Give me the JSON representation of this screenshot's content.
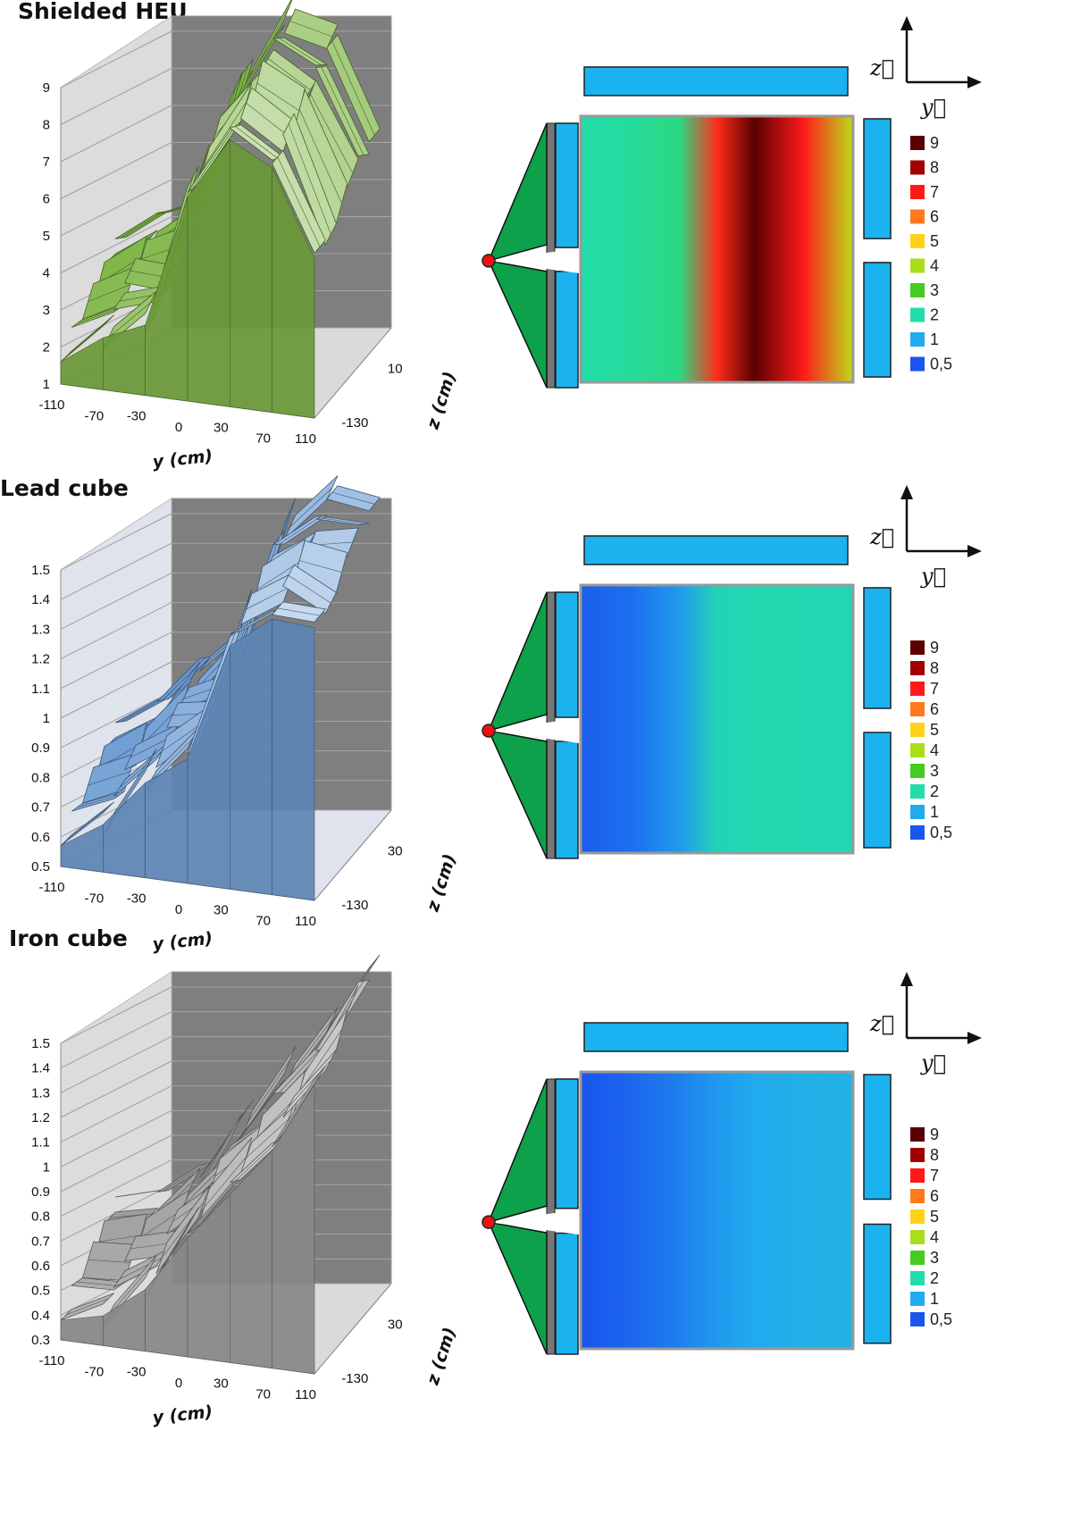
{
  "chart_data": [
    {
      "type": "surface",
      "title": "Shielded HEU",
      "xlabel": "y (cm)",
      "zlabel": "z (cm)",
      "x_ticks": [
        "-110",
        "-70",
        "-30",
        "0",
        "30",
        "70",
        "110"
      ],
      "z_ticks": [
        "10",
        "-130"
      ],
      "y_ticks": [
        "1",
        "2",
        "3",
        "4",
        "5",
        "6",
        "7",
        "8",
        "9"
      ],
      "ylim": [
        1,
        9
      ],
      "x": [
        -110,
        -70,
        -30,
        0,
        30,
        70,
        110
      ],
      "values": [
        1.6,
        2.4,
        2.9,
        6.5,
        8.2,
        7.6,
        5.3
      ],
      "surface_color": "#7cb342",
      "heatmap": {
        "y": [
          -110,
          -70,
          -30,
          0,
          30,
          70,
          110
        ],
        "values": [
          2.0,
          2.1,
          2.3,
          6.8,
          9.0,
          7.0,
          4.2
        ]
      },
      "colorbar": [
        "9",
        "8",
        "7",
        "6",
        "5",
        "4",
        "3",
        "2",
        "1",
        "0,5"
      ],
      "axis_vectors": [
        "z⃗",
        "y⃗"
      ]
    },
    {
      "type": "surface",
      "title": "Lead cube",
      "xlabel": "y (cm)",
      "zlabel": "z (cm)",
      "x_ticks": [
        "-110",
        "-70",
        "-30",
        "0",
        "30",
        "70",
        "110"
      ],
      "z_ticks": [
        "30",
        "-130"
      ],
      "y_ticks": [
        "0.5",
        "0.6",
        "0.7",
        "0.8",
        "0.9",
        "1",
        "1.1",
        "1.2",
        "1.3",
        "1.4",
        "1.5"
      ],
      "ylim": [
        0.5,
        1.5
      ],
      "x": [
        -110,
        -70,
        -30,
        0,
        30,
        70,
        110
      ],
      "values": [
        0.57,
        0.66,
        0.82,
        0.92,
        1.32,
        1.43,
        1.42
      ],
      "surface_color": "#6c9bd2",
      "heatmap": {
        "y": [
          -110,
          -70,
          -30,
          0,
          30,
          70,
          110
        ],
        "values": [
          0.55,
          0.65,
          0.9,
          1.8,
          1.9,
          1.9,
          1.85
        ]
      },
      "colorbar": [
        "9",
        "8",
        "7",
        "6",
        "5",
        "4",
        "3",
        "2",
        "1",
        "0,5"
      ],
      "axis_vectors": [
        "z⃗",
        "y⃗"
      ]
    },
    {
      "type": "surface",
      "title": "Iron cube",
      "xlabel": "y (cm)",
      "zlabel": "z (cm)",
      "x_ticks": [
        "-110",
        "-70",
        "-30",
        "0",
        "30",
        "70",
        "110"
      ],
      "z_ticks": [
        "30",
        "-130"
      ],
      "y_ticks": [
        "0.3",
        "0.4",
        "0.5",
        "0.6",
        "0.7",
        "0.8",
        "0.9",
        "1",
        "1.1",
        "1.2",
        "1.3",
        "1.4",
        "1.5"
      ],
      "ylim": [
        0.3,
        1.5
      ],
      "x": [
        -110,
        -70,
        -30,
        0,
        30,
        70,
        110
      ],
      "values": [
        0.38,
        0.42,
        0.55,
        0.78,
        0.98,
        1.18,
        1.47
      ],
      "surface_color": "#a0a0a0",
      "heatmap": {
        "y": [
          -110,
          -70,
          -30,
          0,
          30,
          70,
          110
        ],
        "values": [
          0.5,
          0.6,
          0.75,
          0.9,
          1.0,
          1.1,
          1.15
        ]
      },
      "colorbar": [
        "9",
        "8",
        "7",
        "6",
        "5",
        "4",
        "3",
        "2",
        "1",
        "0,5"
      ],
      "axis_vectors": [
        "z⃗",
        "y⃗"
      ]
    }
  ],
  "colorscale": {
    "colors": [
      "#5a0000",
      "#a00000",
      "#ff1a1a",
      "#ff7a1a",
      "#ffd21a",
      "#aadd1a",
      "#44cc22",
      "#22ddaa",
      "#22aaee",
      "#1a55ee"
    ]
  }
}
